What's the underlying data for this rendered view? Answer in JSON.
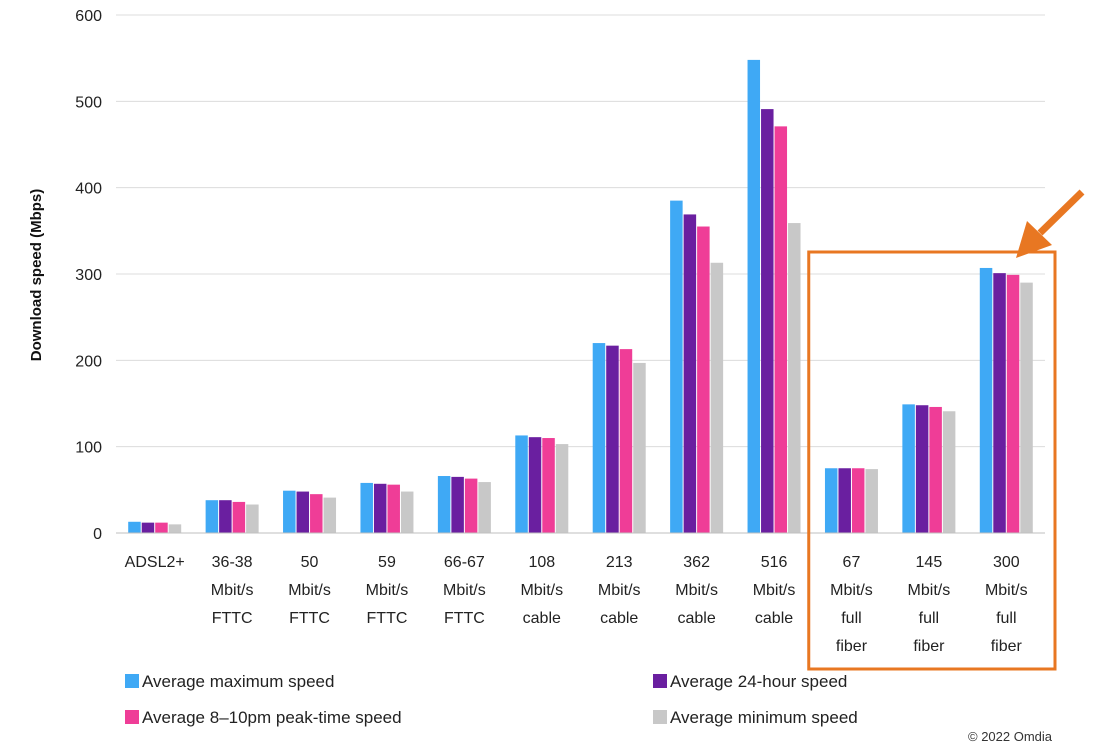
{
  "chart_data": {
    "type": "bar",
    "ylabel": "Download speed (Mbps)",
    "xlabel": "",
    "ylim": [
      0,
      600
    ],
    "yticks": [
      0,
      100,
      200,
      300,
      400,
      500,
      600
    ],
    "grid": true,
    "categories": [
      [
        "ADSL2+"
      ],
      [
        "36-38",
        "Mbit/s",
        "FTTC"
      ],
      [
        "50",
        "Mbit/s",
        "FTTC"
      ],
      [
        "59",
        "Mbit/s",
        "FTTC"
      ],
      [
        "66-67",
        "Mbit/s",
        "FTTC"
      ],
      [
        "108",
        "Mbit/s",
        "cable"
      ],
      [
        "213",
        "Mbit/s",
        "cable"
      ],
      [
        "362",
        "Mbit/s",
        "cable"
      ],
      [
        "516",
        "Mbit/s",
        "cable"
      ],
      [
        "67",
        "Mbit/s",
        "full",
        "fiber"
      ],
      [
        "145",
        "Mbit/s",
        "full",
        "fiber"
      ],
      [
        "300",
        "Mbit/s",
        "full",
        "fiber"
      ]
    ],
    "series": [
      {
        "name": "Average maximum speed",
        "color": "#3fa9f5",
        "values": [
          13,
          38,
          49,
          58,
          66,
          113,
          220,
          385,
          548,
          75,
          149,
          307
        ]
      },
      {
        "name": "Average 24-hour speed",
        "color": "#6a1fa0",
        "values": [
          12,
          38,
          48,
          57,
          65,
          111,
          217,
          369,
          491,
          75,
          148,
          301
        ]
      },
      {
        "name": "Average 8–10pm peak-time speed",
        "color": "#ef3d97",
        "values": [
          12,
          36,
          45,
          56,
          63,
          110,
          213,
          355,
          471,
          75,
          146,
          299
        ]
      },
      {
        "name": "Average minimum speed",
        "color": "#c8c8c8",
        "values": [
          10,
          33,
          41,
          48,
          59,
          103,
          197,
          313,
          359,
          74,
          141,
          290
        ]
      }
    ],
    "legend_position": "bottom",
    "highlight": {
      "categories": [
        "67 Mbit/s full fiber",
        "145 Mbit/s full fiber",
        "300 Mbit/s full fiber"
      ],
      "color": "#e87722"
    }
  },
  "credit": "© 2022 Omdia"
}
